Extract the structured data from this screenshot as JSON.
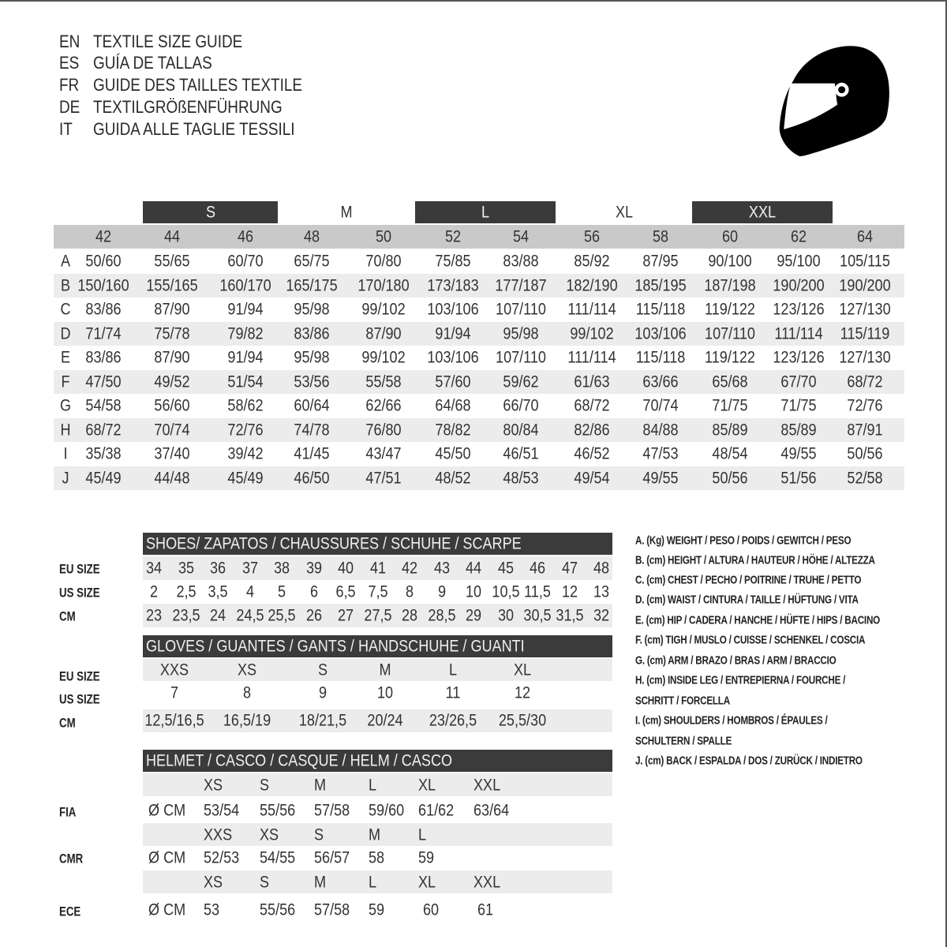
{
  "header": {
    "languages": [
      {
        "code": "EN",
        "title": "TEXTILE SIZE GUIDE"
      },
      {
        "code": "ES",
        "title": "GUÍA DE TALLAS"
      },
      {
        "code": "FR",
        "title": "GUIDE DES TAILLES TEXTILE"
      },
      {
        "code": "DE",
        "title": "TEXTILGRÖßENFÜHRUNG"
      },
      {
        "code": "IT",
        "title": "GUIDA ALLE TAGLIE TESSILI"
      }
    ],
    "icon": "helmet-icon"
  },
  "textile": {
    "bands": [
      "S",
      "M",
      "L",
      "XL",
      "XXL"
    ],
    "sizes": [
      "42",
      "44",
      "46",
      "48",
      "50",
      "52",
      "54",
      "56",
      "58",
      "60",
      "62",
      "64"
    ],
    "rows": [
      {
        "label": "A",
        "values": [
          "50/60",
          "55/65",
          "60/70",
          "65/75",
          "70/80",
          "75/85",
          "83/88",
          "85/92",
          "87/95",
          "90/100",
          "95/100",
          "105/115"
        ]
      },
      {
        "label": "B",
        "values": [
          "150/160",
          "155/165",
          "160/170",
          "165/175",
          "170/180",
          "173/183",
          "177/187",
          "182/190",
          "185/195",
          "187/198",
          "190/200",
          "190/200"
        ]
      },
      {
        "label": "C",
        "values": [
          "83/86",
          "87/90",
          "91/94",
          "95/98",
          "99/102",
          "103/106",
          "107/110",
          "111/114",
          "115/118",
          "119/122",
          "123/126",
          "127/130"
        ]
      },
      {
        "label": "D",
        "values": [
          "71/74",
          "75/78",
          "79/82",
          "83/86",
          "87/90",
          "91/94",
          "95/98",
          "99/102",
          "103/106",
          "107/110",
          "111/114",
          "115/119"
        ]
      },
      {
        "label": "E",
        "values": [
          "83/86",
          "87/90",
          "91/94",
          "95/98",
          "99/102",
          "103/106",
          "107/110",
          "111/114",
          "115/118",
          "119/122",
          "123/126",
          "127/130"
        ]
      },
      {
        "label": "F",
        "values": [
          "47/50",
          "49/52",
          "51/54",
          "53/56",
          "55/58",
          "57/60",
          "59/62",
          "61/63",
          "63/66",
          "65/68",
          "67/70",
          "68/72"
        ]
      },
      {
        "label": "G",
        "values": [
          "54/58",
          "56/60",
          "58/62",
          "60/64",
          "62/66",
          "64/68",
          "66/70",
          "68/72",
          "70/74",
          "71/75",
          "71/75",
          "72/76"
        ]
      },
      {
        "label": "H",
        "values": [
          "68/72",
          "70/74",
          "72/76",
          "74/78",
          "76/80",
          "78/82",
          "80/84",
          "82/86",
          "84/88",
          "85/89",
          "85/89",
          "87/91"
        ]
      },
      {
        "label": "I",
        "values": [
          "35/38",
          "37/40",
          "39/42",
          "41/45",
          "43/47",
          "45/50",
          "46/51",
          "46/52",
          "47/53",
          "48/54",
          "49/55",
          "50/56"
        ]
      },
      {
        "label": "J",
        "values": [
          "45/49",
          "44/48",
          "45/49",
          "46/50",
          "47/51",
          "48/52",
          "48/53",
          "49/54",
          "49/55",
          "50/56",
          "51/56",
          "52/58"
        ]
      }
    ]
  },
  "shoes": {
    "title": "SHOES/ ZAPATOS / CHAUSSURES / SCHUHE / SCARPE",
    "rows": [
      {
        "label": "EU SIZE",
        "values": [
          "34",
          "35",
          "36",
          "37",
          "38",
          "39",
          "40",
          "41",
          "42",
          "43",
          "44",
          "45",
          "46",
          "47",
          "48"
        ]
      },
      {
        "label": "US SIZE",
        "values": [
          "2",
          "2,5",
          "3,5",
          "4",
          "5",
          "6",
          "6,5",
          "7,5",
          "8",
          "9",
          "10",
          "10,5",
          "11,5",
          "12",
          "13"
        ]
      },
      {
        "label": "CM",
        "values": [
          "23",
          "23,5",
          "24",
          "24,5",
          "25,5",
          "26",
          "27",
          "27,5",
          "28",
          "28,5",
          "29",
          "30",
          "30,5",
          "31,5",
          "32"
        ]
      }
    ]
  },
  "gloves": {
    "title": "GLOVES / GUANTES / GANTS / HANDSCHUHE / GUANTI",
    "rows": [
      {
        "label": "EU SIZE",
        "values": [
          "XXS",
          "XS",
          "S",
          "M",
          "L",
          "XL"
        ]
      },
      {
        "label": "US SIZE",
        "values": [
          "7",
          "8",
          "9",
          "10",
          "11",
          "12"
        ]
      },
      {
        "label": "CM",
        "values": [
          "12,5/16,5",
          "16,5/19",
          "18/21,5",
          "20/24",
          "23/26,5",
          "25,5/30"
        ]
      }
    ]
  },
  "helmet": {
    "title": "HELMET / CASCO / CASQUE / HELM / CASCO",
    "unit": "Ø CM",
    "standards": [
      {
        "label": "FIA",
        "sizes": [
          "XS",
          "S",
          "M",
          "L",
          "XL",
          "XXL"
        ],
        "values": [
          "53/54",
          "55/56",
          "57/58",
          "59/60",
          "61/62",
          "63/64"
        ]
      },
      {
        "label": "CMR",
        "sizes": [
          "XXS",
          "XS",
          "S",
          "M",
          "L"
        ],
        "values": [
          "52/53",
          "54/55",
          "56/57",
          "58",
          "59"
        ]
      },
      {
        "label": "ECE",
        "sizes": [
          "XS",
          "S",
          "M",
          "L",
          "XL",
          "XXL"
        ],
        "values": [
          "53",
          "55/56",
          "57/58",
          "59",
          "60",
          "61"
        ]
      }
    ]
  },
  "legend": [
    "A. (Kg) WEIGHT / PESO / POIDS / GEWITCH / PESO",
    "B. (cm) HEIGHT / ALTURA / HAUTEUR / HÖHE / ALTEZZA",
    "C. (cm) CHEST / PECHO / POITRINE / TRUHE / PETTO",
    "D. (cm) WAIST / CINTURA / TAILLE / HÜFTUNG / VITA",
    "E. (cm) HIP / CADERA / HANCHE / HÜFTE / HIPS /  BACINO",
    "F.  (cm) TIGH / MUSLO / CUISSE / SCHENKEL / COSCIA",
    "G. (cm) ARM  / BRAZO / BRAS / ARM / BRACCIO",
    "H. (cm) INSIDE LEG / ENTREPIERNA / FOURCHE /",
    "SCHRITT / FORCELLA",
    "I.  (cm) SHOULDERS / HOMBROS / ÉPAULES /",
    "SCHULTERN / SPALLE",
    "J. (cm) BACK / ESPALDA / DOS / ZURÜCK / INDIETRO"
  ],
  "colors": {
    "dark_band": "#3a3a3a",
    "header_gray": "#c9c9c9",
    "stripe": "#ececec",
    "text": "#333333"
  }
}
